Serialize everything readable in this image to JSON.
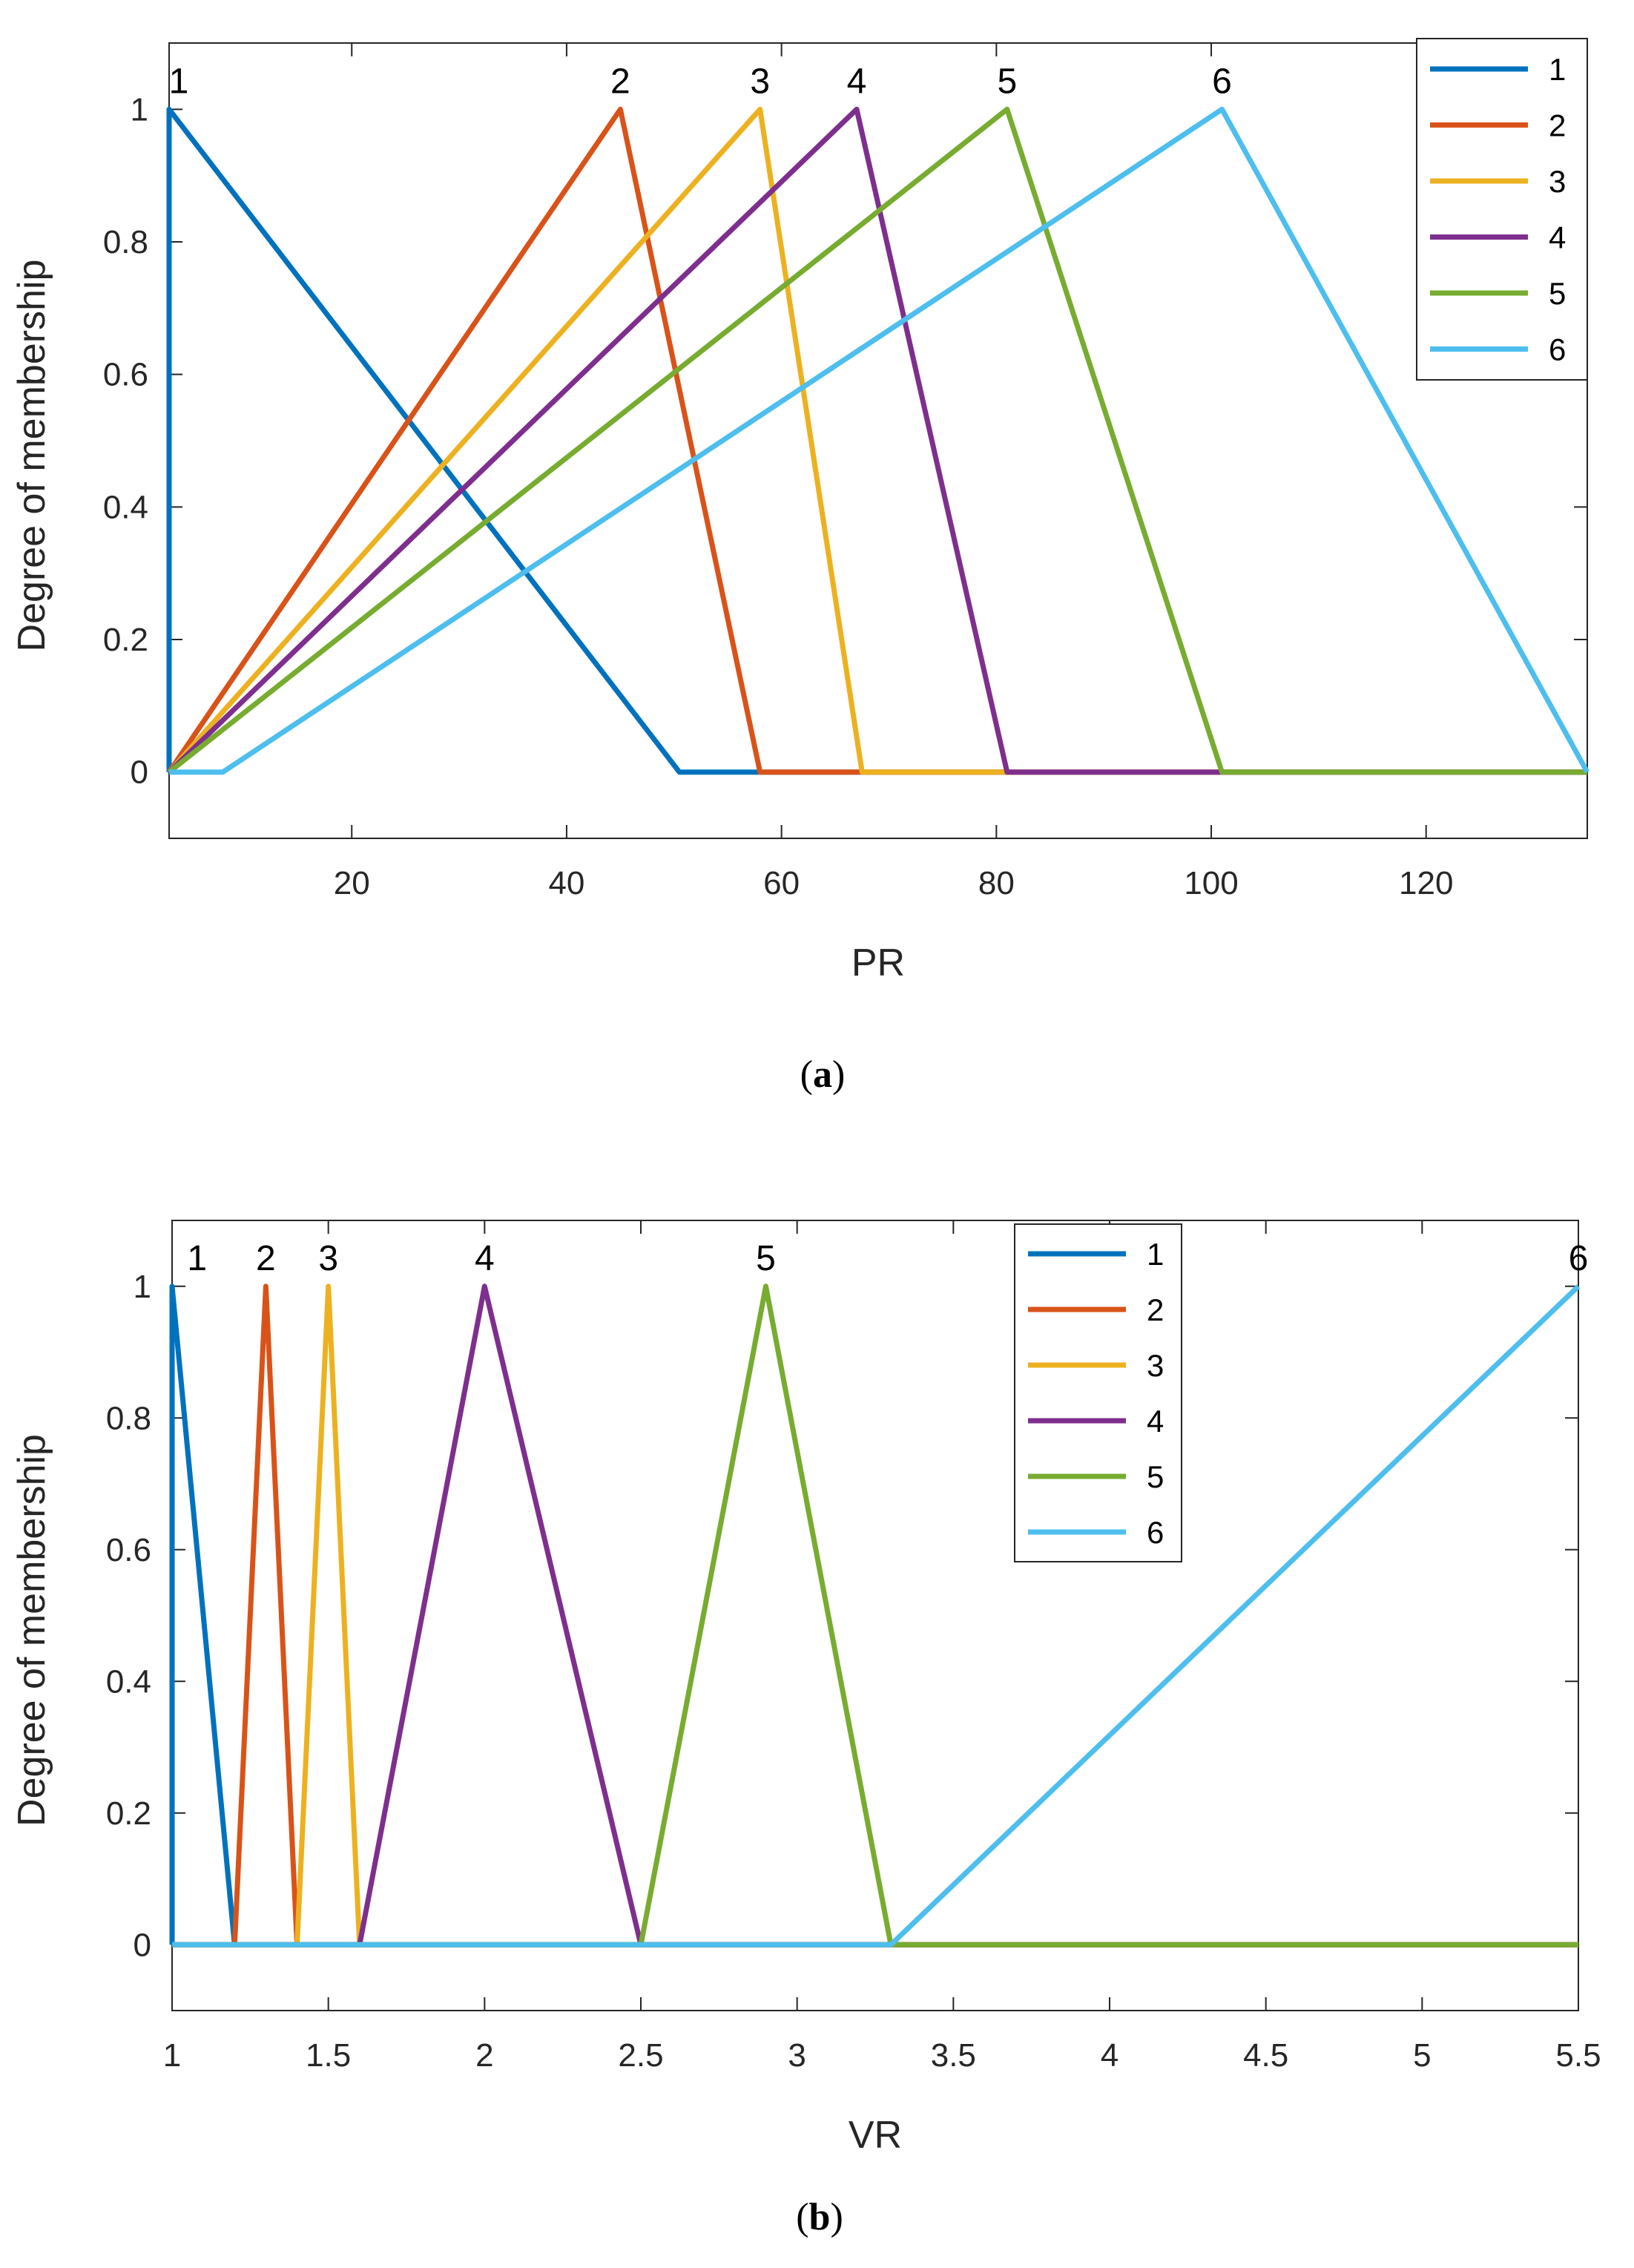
{
  "chart_data": [
    {
      "type": "line",
      "caption_open": "(",
      "caption_letter": "a",
      "caption_close": ")",
      "xlabel": "PR",
      "ylabel": "Degree of membership",
      "xlim": [
        3,
        135
      ],
      "ylim": [
        -0.1,
        1.1
      ],
      "xticks": [
        20,
        40,
        60,
        80,
        100,
        120
      ],
      "xtick_labels": [
        "20",
        "40",
        "60",
        "80",
        "100",
        "120"
      ],
      "yticks": [
        0,
        0.2,
        0.4,
        0.6,
        0.8,
        1
      ],
      "ytick_labels": [
        "0",
        "0.2",
        "0.4",
        "0.6",
        "0.8",
        "1"
      ],
      "legend_position": "top-right",
      "series": [
        {
          "name": "1",
          "color": "#0072BD",
          "peak_label": "1",
          "x": [
            3,
            3,
            50.5,
            135
          ],
          "y": [
            0,
            1,
            0,
            0
          ]
        },
        {
          "name": "2",
          "color": "#D95319",
          "peak_label": "2",
          "x": [
            3,
            45,
            58,
            135
          ],
          "y": [
            0,
            1,
            0,
            0
          ]
        },
        {
          "name": "3",
          "color": "#EDB120",
          "peak_label": "3",
          "x": [
            3,
            58,
            67.5,
            135
          ],
          "y": [
            0,
            1,
            0,
            0
          ]
        },
        {
          "name": "4",
          "color": "#7E2F8E",
          "peak_label": "4",
          "x": [
            3,
            67,
            81,
            135
          ],
          "y": [
            0,
            1,
            0,
            0
          ]
        },
        {
          "name": "5",
          "color": "#77AC30",
          "peak_label": "5",
          "x": [
            3,
            81,
            101,
            135
          ],
          "y": [
            0,
            1,
            0,
            0
          ]
        },
        {
          "name": "6",
          "color": "#4DBEEE",
          "peak_label": "6",
          "x": [
            3,
            8,
            101,
            135
          ],
          "y": [
            0,
            0,
            1,
            0
          ]
        }
      ]
    },
    {
      "type": "line",
      "caption_open": "(",
      "caption_letter": "b",
      "caption_close": ")",
      "xlabel": "VR",
      "ylabel": "Degree of membership",
      "xlim": [
        1,
        5.5
      ],
      "ylim": [
        -0.1,
        1.1
      ],
      "xticks": [
        1,
        1.5,
        2,
        2.5,
        3,
        3.5,
        4,
        4.5,
        5,
        5.5
      ],
      "xtick_labels": [
        "1",
        "1.5",
        "2",
        "2.5",
        "3",
        "3.5",
        "4",
        "4.5",
        "5",
        "5.5"
      ],
      "yticks": [
        0,
        0.2,
        0.4,
        0.6,
        0.8,
        1
      ],
      "ytick_labels": [
        "0",
        "0.2",
        "0.4",
        "0.6",
        "0.8",
        "1"
      ],
      "legend_position": "top-center",
      "series": [
        {
          "name": "1",
          "color": "#0072BD",
          "peak_label": "1",
          "x": [
            1,
            1,
            1.2,
            5.5
          ],
          "y": [
            0,
            1,
            0,
            0
          ]
        },
        {
          "name": "2",
          "color": "#D95319",
          "peak_label": "2",
          "x": [
            1,
            1.2,
            1.3,
            1.4,
            5.5
          ],
          "y": [
            0,
            0,
            1,
            0,
            0
          ]
        },
        {
          "name": "3",
          "color": "#EDB120",
          "peak_label": "3",
          "x": [
            1,
            1.4,
            1.5,
            1.6,
            5.5
          ],
          "y": [
            0,
            0,
            1,
            0,
            0
          ]
        },
        {
          "name": "4",
          "color": "#7E2F8E",
          "peak_label": "4",
          "x": [
            1,
            1.6,
            2,
            2.5,
            5.5
          ],
          "y": [
            0,
            0,
            1,
            0,
            0
          ]
        },
        {
          "name": "5",
          "color": "#77AC30",
          "peak_label": "5",
          "x": [
            1,
            2.5,
            2.9,
            3.3,
            5.5
          ],
          "y": [
            0,
            0,
            1,
            0,
            0
          ]
        },
        {
          "name": "6",
          "color": "#4DBEEE",
          "peak_label": "6",
          "x": [
            1,
            3.3,
            5.5
          ],
          "y": [
            0,
            0,
            1
          ]
        }
      ]
    }
  ]
}
